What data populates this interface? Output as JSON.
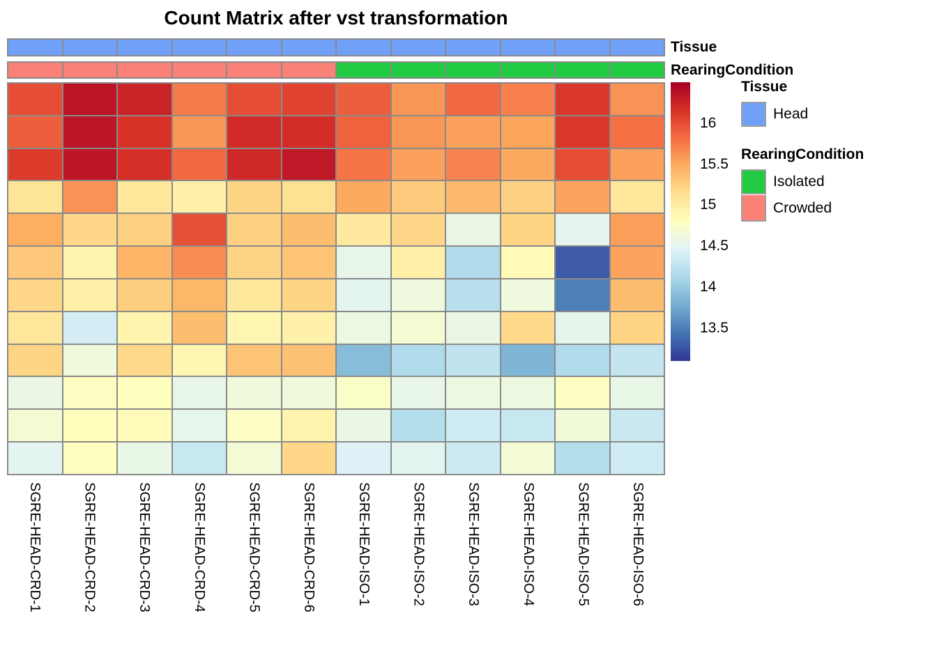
{
  "title": "Count Matrix after vst transformation",
  "annotation_rows": [
    {
      "name": "Tissue",
      "values": [
        "Head",
        "Head",
        "Head",
        "Head",
        "Head",
        "Head",
        "Head",
        "Head",
        "Head",
        "Head",
        "Head",
        "Head"
      ],
      "colors": {
        "Head": "#70a0f8"
      }
    },
    {
      "name": "RearingCondition",
      "values": [
        "Crowded",
        "Crowded",
        "Crowded",
        "Crowded",
        "Crowded",
        "Crowded",
        "Isolated",
        "Isolated",
        "Isolated",
        "Isolated",
        "Isolated",
        "Isolated"
      ],
      "colors": {
        "Isolated": "#21cb42",
        "Crowded": "#f98178"
      }
    }
  ],
  "legend": {
    "tissue": {
      "title": "Tissue",
      "items": [
        {
          "label": "Head",
          "color": "#70a0f8"
        }
      ]
    },
    "rearing_condition": {
      "title": "RearingCondition",
      "items": [
        {
          "label": "Isolated",
          "color": "#21cb42"
        },
        {
          "label": "Crowded",
          "color": "#f98178"
        }
      ]
    }
  },
  "chart_data": {
    "type": "heatmap",
    "title": "Count Matrix after vst transformation",
    "columns": [
      "SGRE-HEAD-CRD-1",
      "SGRE-HEAD-CRD-2",
      "SGRE-HEAD-CRD-3",
      "SGRE-HEAD-CRD-4",
      "SGRE-HEAD-CRD-5",
      "SGRE-HEAD-CRD-6",
      "SGRE-HEAD-ISO-1",
      "SGRE-HEAD-ISO-2",
      "SGRE-HEAD-ISO-3",
      "SGRE-HEAD-ISO-4",
      "SGRE-HEAD-ISO-5",
      "SGRE-HEAD-ISO-6"
    ],
    "row_labels_shown": false,
    "values": [
      [
        16.0,
        16.35,
        16.25,
        15.75,
        16.0,
        16.05,
        15.9,
        15.6,
        15.85,
        15.72,
        16.12,
        15.62
      ],
      [
        15.9,
        16.35,
        16.15,
        15.6,
        16.2,
        16.18,
        15.88,
        15.6,
        15.55,
        15.52,
        16.12,
        15.8
      ],
      [
        16.1,
        16.35,
        16.17,
        15.85,
        16.22,
        16.32,
        15.78,
        15.55,
        15.7,
        15.5,
        16.0,
        15.55
      ],
      [
        15.1,
        15.62,
        15.05,
        14.95,
        15.22,
        15.12,
        15.5,
        15.28,
        15.4,
        15.24,
        15.53,
        15.07
      ],
      [
        15.48,
        15.2,
        15.25,
        15.98,
        15.24,
        15.38,
        15.04,
        15.2,
        14.57,
        15.22,
        14.52,
        15.56
      ],
      [
        15.3,
        14.93,
        15.44,
        15.65,
        15.23,
        15.33,
        14.55,
        14.97,
        14.15,
        14.85,
        13.3,
        15.53
      ],
      [
        15.2,
        14.97,
        15.26,
        15.42,
        15.05,
        15.22,
        14.5,
        14.62,
        14.2,
        14.62,
        13.5,
        15.38
      ],
      [
        15.07,
        14.38,
        14.92,
        15.38,
        14.9,
        14.95,
        14.6,
        14.68,
        14.58,
        15.18,
        14.53,
        15.23
      ],
      [
        15.22,
        14.63,
        15.19,
        14.9,
        15.33,
        15.35,
        13.9,
        14.15,
        14.25,
        13.85,
        14.15,
        14.28
      ],
      [
        14.58,
        14.78,
        14.8,
        14.55,
        14.63,
        14.64,
        14.75,
        14.55,
        14.6,
        14.6,
        14.78,
        14.56
      ],
      [
        14.68,
        14.82,
        14.83,
        14.54,
        14.77,
        14.93,
        14.57,
        14.18,
        14.35,
        14.3,
        14.65,
        14.32
      ],
      [
        14.5,
        14.8,
        14.56,
        14.3,
        14.66,
        15.2,
        14.45,
        14.5,
        14.34,
        14.66,
        14.18,
        14.35
      ]
    ],
    "colorscale": {
      "name": "RdYlBu (reversed)",
      "domain": [
        13.1,
        16.5
      ],
      "stops": [
        "#313695",
        "#4575b4",
        "#74add1",
        "#abd9e9",
        "#e0f3f8",
        "#ffffbf",
        "#fee090",
        "#fdae61",
        "#f46d43",
        "#d73027",
        "#a50026"
      ]
    },
    "colorbar_ticks": [
      16,
      15.5,
      15,
      14.5,
      14,
      13.5
    ],
    "gridline_color": "#8a8a8a"
  }
}
